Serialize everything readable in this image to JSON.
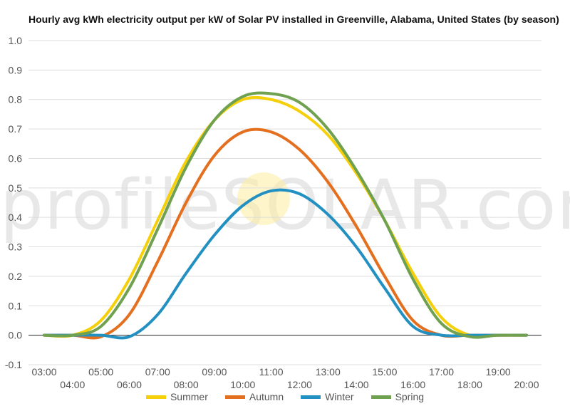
{
  "chart_data": {
    "type": "line",
    "title": "Hourly avg kWh electricity output per kW of Solar PV installed in Greenville, Alabama, United States (by season)",
    "watermark": "profileSOLAR.com",
    "x": [
      "03:00",
      "04:00",
      "05:00",
      "06:00",
      "07:00",
      "08:00",
      "09:00",
      "10:00",
      "11:00",
      "12:00",
      "13:00",
      "14:00",
      "15:00",
      "16:00",
      "17:00",
      "18:00",
      "19:00",
      "20:00"
    ],
    "ylim": [
      -0.1,
      1.0
    ],
    "yticks": [
      "1.0",
      "0.9",
      "0.8",
      "0.7",
      "0.6",
      "0.5",
      "0.4",
      "0.3",
      "0.2",
      "0.1",
      "0.0",
      "-0.1"
    ],
    "grid": true,
    "legend_position": "bottom",
    "series": [
      {
        "name": "Summer",
        "color": "#F5D00A",
        "values": [
          0.0,
          0.0,
          0.05,
          0.19,
          0.39,
          0.59,
          0.73,
          0.8,
          0.8,
          0.76,
          0.68,
          0.55,
          0.39,
          0.21,
          0.06,
          0.0,
          0.0,
          0.0
        ]
      },
      {
        "name": "Autumn",
        "color": "#E46F1E",
        "values": [
          0.0,
          0.0,
          -0.005,
          0.07,
          0.25,
          0.45,
          0.61,
          0.69,
          0.69,
          0.63,
          0.52,
          0.37,
          0.2,
          0.05,
          0.0,
          0.0,
          0.0,
          0.0
        ]
      },
      {
        "name": "Winter",
        "color": "#2390C2",
        "values": [
          0.0,
          0.0,
          0.0,
          -0.005,
          0.07,
          0.21,
          0.34,
          0.44,
          0.49,
          0.48,
          0.41,
          0.3,
          0.16,
          0.03,
          0.0,
          0.0,
          0.0,
          0.0
        ]
      },
      {
        "name": "Spring",
        "color": "#6FA151",
        "values": [
          0.0,
          0.0,
          0.03,
          0.16,
          0.36,
          0.57,
          0.73,
          0.81,
          0.82,
          0.79,
          0.7,
          0.56,
          0.39,
          0.19,
          0.04,
          -0.005,
          0.0,
          0.0
        ]
      }
    ]
  }
}
